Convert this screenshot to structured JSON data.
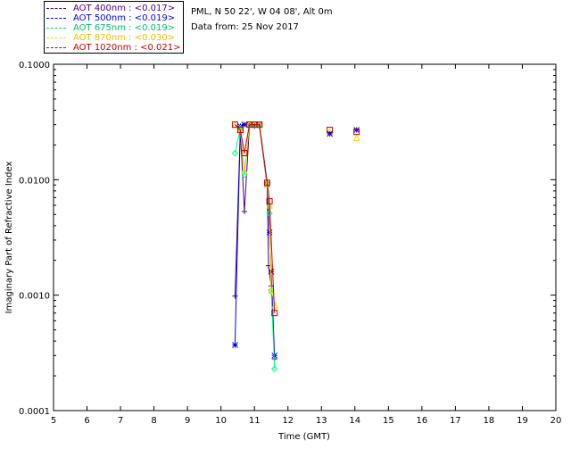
{
  "header": {
    "site_line": "PML, N 50 22', W 04 08', Alt 0m",
    "date_line": "Data from: 25 Nov 2017"
  },
  "legend": [
    {
      "label": "AOT  400nm : <0.017>",
      "color": "#4b0082"
    },
    {
      "label": "AOT  500nm : <0.019>",
      "color": "#0000ff"
    },
    {
      "label": "AOT  675nm : <0.019>",
      "color": "#00ff7f"
    },
    {
      "label": "AOT  870nm : <0.030>",
      "color": "#ffd700"
    },
    {
      "label": "AOT 1020nm : <0.021>",
      "color": "#cc0000"
    }
  ],
  "chart_data": {
    "type": "line",
    "xlabel": "Time (GMT)",
    "ylabel": "Imaginary Part of Refractive Index",
    "xlim": [
      5,
      20
    ],
    "ylim": [
      0.0001,
      0.1
    ],
    "yscale": "log",
    "x_ticks": [
      "5",
      "6",
      "7",
      "8",
      "9",
      "10",
      "11",
      "12",
      "13",
      "14",
      "15",
      "16",
      "17",
      "18",
      "19",
      "20"
    ],
    "y_ticks": [
      {
        "value": 0.0001,
        "label": "0.0001"
      },
      {
        "value": 0.001,
        "label": "0.0010"
      },
      {
        "value": 0.01,
        "label": "0.0100"
      },
      {
        "value": 0.1,
        "label": "0.1000"
      }
    ],
    "grid": false,
    "legend_position": "top-left-outside",
    "series": [
      {
        "name": "AOT  400nm : <0.017>",
        "color": "#4b0082",
        "marker": "plus",
        "x": [
          10.42,
          10.58,
          10.7,
          10.85,
          11.0,
          11.15,
          11.38,
          11.42,
          11.5,
          11.6
        ],
        "y": [
          0.00098,
          0.027,
          0.0053,
          0.029,
          0.029,
          0.029,
          0.0088,
          0.0018,
          0.0012,
          0.00028
        ]
      },
      {
        "name": "AOT  500nm : <0.019>",
        "color": "#0000ff",
        "marker": "star",
        "x": [
          10.42,
          10.58,
          10.7,
          10.85,
          11.0,
          11.15,
          11.38,
          11.45,
          11.5,
          11.6,
          14.05
        ],
        "y": [
          0.00037,
          0.029,
          0.03,
          0.03,
          0.03,
          0.03,
          0.0091,
          0.0035,
          0.0016,
          0.0003,
          0.027
        ]
      },
      {
        "name": "AOT  675nm : <0.019>",
        "color": "#00ff7f",
        "marker": "diamond",
        "x": [
          10.42,
          10.58,
          10.7,
          10.85,
          11.0,
          11.15,
          11.38,
          11.45,
          11.5,
          11.6
        ],
        "y": [
          0.017,
          0.028,
          0.011,
          0.03,
          0.03,
          0.03,
          0.0094,
          0.0051,
          0.0011,
          0.00023
        ]
      },
      {
        "name": "AOT  870nm : <0.030>",
        "color": "#ffd700",
        "marker": "triangle",
        "x": [
          10.42,
          10.58,
          10.7,
          10.85,
          11.0,
          11.15,
          11.38,
          11.45,
          11.5,
          11.62,
          13.25,
          14.05
        ],
        "y": [
          0.03,
          0.027,
          0.012,
          0.03,
          0.03,
          0.03,
          0.0092,
          0.006,
          0.0011,
          0.00082,
          0.026,
          0.023
        ]
      },
      {
        "name": "AOT 1020nm : <0.021>",
        "color": "#cc0000",
        "marker": "square",
        "x": [
          10.42,
          10.58,
          10.7,
          10.85,
          11.0,
          11.15,
          11.38,
          11.45,
          11.6,
          13.25,
          14.05
        ],
        "y": [
          0.03,
          0.027,
          0.017,
          0.03,
          0.03,
          0.03,
          0.0094,
          0.0065,
          0.0007,
          0.027,
          0.026
        ]
      }
    ],
    "extra_points": [
      {
        "series": "AOT  500nm : <0.019>",
        "x": 13.25,
        "y": 0.025
      }
    ]
  }
}
